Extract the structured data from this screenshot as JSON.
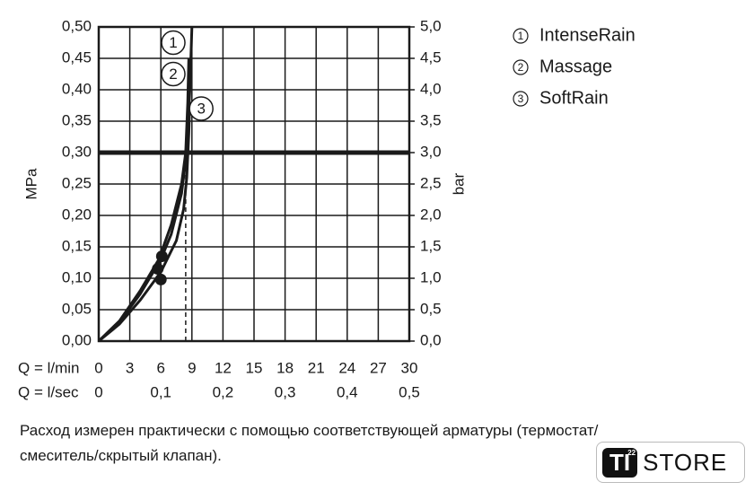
{
  "chart_data": {
    "type": "line",
    "xlabel": "Q = l/min",
    "x2label": "Q = l/sec",
    "ylabel": "MPa",
    "y2label": "bar",
    "xlim": [
      0,
      30
    ],
    "xticks": [
      0,
      3,
      6,
      9,
      12,
      15,
      18,
      21,
      24,
      27,
      30
    ],
    "x2ticks": [
      0,
      {
        "value": 6,
        "label": "0,1"
      },
      {
        "value": 12,
        "label": "0,2"
      },
      {
        "value": 18,
        "label": "0,3"
      },
      {
        "value": 24,
        "label": "0,4"
      },
      {
        "value": 30,
        "label": "0,5"
      }
    ],
    "ylim": [
      0,
      0.5
    ],
    "yticks": [
      {
        "value": 0,
        "label": "0,00"
      },
      {
        "value": 0.05,
        "label": "0,05"
      },
      {
        "value": 0.1,
        "label": "0,10"
      },
      {
        "value": 0.15,
        "label": "0,15"
      },
      {
        "value": 0.2,
        "label": "0,20"
      },
      {
        "value": 0.25,
        "label": "0,25"
      },
      {
        "value": 0.3,
        "label": "0,30"
      },
      {
        "value": 0.35,
        "label": "0,35"
      },
      {
        "value": 0.4,
        "label": "0,40"
      },
      {
        "value": 0.45,
        "label": "0,45"
      },
      {
        "value": 0.5,
        "label": "0,50"
      }
    ],
    "y2lim": [
      0,
      5
    ],
    "y2ticks": [
      {
        "value": 0,
        "label": "0,0"
      },
      {
        "value": 0.5,
        "label": "0,5"
      },
      {
        "value": 1,
        "label": "1,0"
      },
      {
        "value": 1.5,
        "label": "1,5"
      },
      {
        "value": 2,
        "label": "2,0"
      },
      {
        "value": 2.5,
        "label": "2,5"
      },
      {
        "value": 3,
        "label": "3,0"
      },
      {
        "value": 3.5,
        "label": "3,5"
      },
      {
        "value": 4,
        "label": "4,0"
      },
      {
        "value": 4.5,
        "label": "4,5"
      },
      {
        "value": 5,
        "label": "5,0"
      }
    ],
    "grid": true,
    "line_color": "#1a1a1a",
    "threshold_y": 0.3,
    "dashed_x": 8.4,
    "series": [
      {
        "name": "IntenseRain",
        "label": "1",
        "label_pos": {
          "x": 7.2,
          "y": 0.475
        },
        "x": [
          0,
          2,
          4,
          6,
          7,
          8,
          8.5,
          8.8,
          9.0
        ],
        "values": [
          0,
          0.03,
          0.075,
          0.13,
          0.17,
          0.235,
          0.3,
          0.4,
          0.5
        ]
      },
      {
        "name": "Massage",
        "label": "2",
        "label_pos": {
          "x": 7.2,
          "y": 0.425
        },
        "x": [
          0,
          2,
          4,
          5.8,
          7,
          8,
          8.4,
          8.6,
          8.7
        ],
        "values": [
          0,
          0.032,
          0.08,
          0.13,
          0.185,
          0.25,
          0.3,
          0.38,
          0.45
        ]
      },
      {
        "name": "SoftRain",
        "label": "3",
        "label_pos": {
          "x": 9.9,
          "y": 0.37
        },
        "x": [
          0,
          2,
          4,
          6,
          7.5,
          8.2,
          8.5,
          8.7,
          8.8
        ],
        "values": [
          0,
          0.027,
          0.065,
          0.11,
          0.16,
          0.21,
          0.26,
          0.33,
          0.38
        ]
      }
    ],
    "points": [
      {
        "x": 6.1,
        "y": 0.135
      },
      {
        "x": 5.7,
        "y": 0.115
      },
      {
        "x": 6.0,
        "y": 0.098
      }
    ],
    "caption": [
      "Расход измерен практически с помощью соответствующей арматуры (термостат/",
      "смеситель/скрытый клапан)."
    ],
    "logo": {
      "mark": "TI",
      "sup": "22",
      "text": "STORE"
    }
  }
}
